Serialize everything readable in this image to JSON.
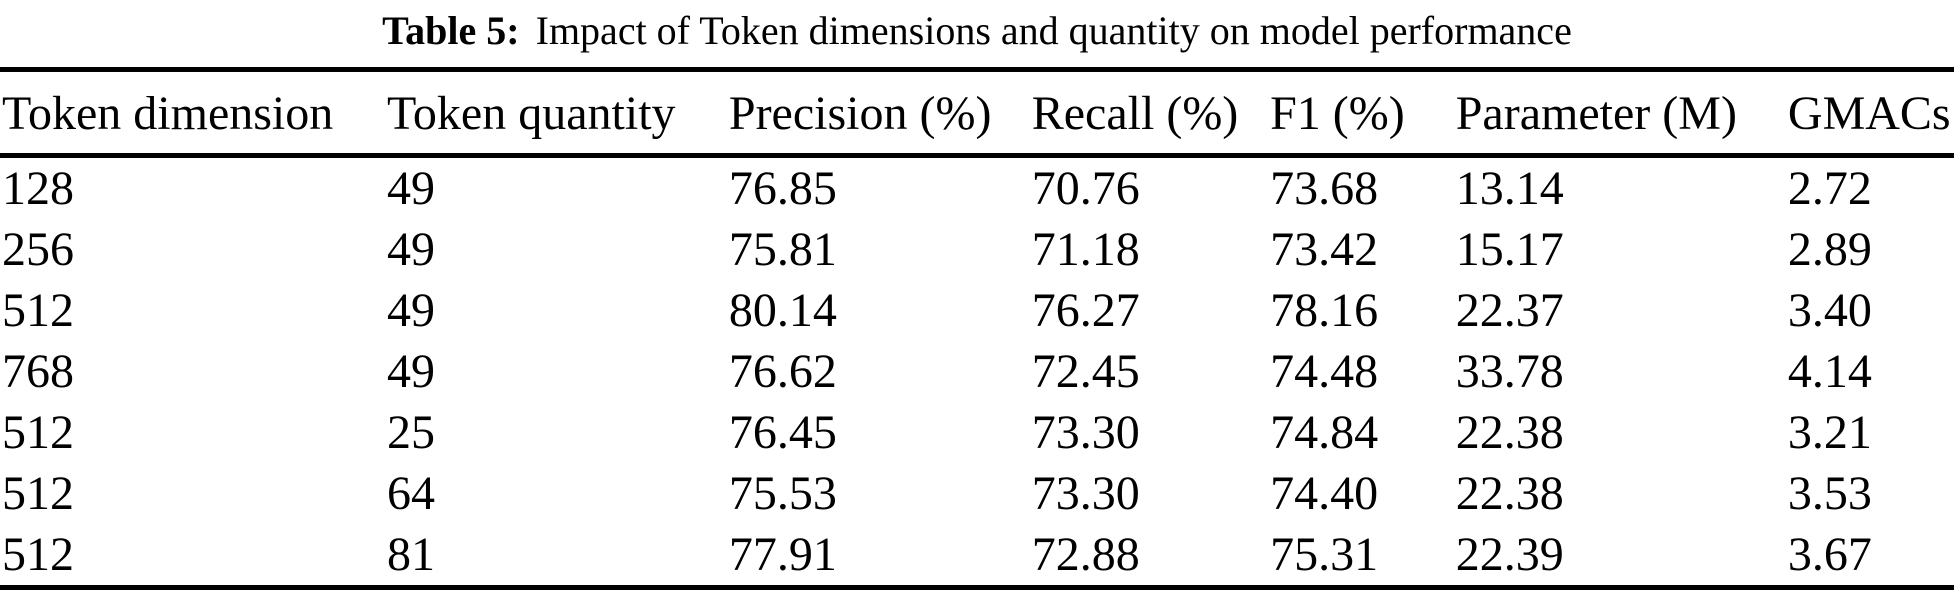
{
  "caption": {
    "label": "Table 5:",
    "text": "Impact of Token dimensions and quantity on model performance"
  },
  "table": {
    "columns": [
      "Token dimension",
      "Token quantity",
      "Precision (%)",
      "Recall (%)",
      "F1 (%)",
      "Parameter (M)",
      "GMACs"
    ],
    "rows": [
      [
        "128",
        "49",
        "76.85",
        "70.76",
        "73.68",
        "13.14",
        "2.72"
      ],
      [
        "256",
        "49",
        "75.81",
        "71.18",
        "73.42",
        "15.17",
        "2.89"
      ],
      [
        "512",
        "49",
        "80.14",
        "76.27",
        "78.16",
        "22.37",
        "3.40"
      ],
      [
        "768",
        "49",
        "76.62",
        "72.45",
        "74.48",
        "33.78",
        "4.14"
      ],
      [
        "512",
        "25",
        "76.45",
        "73.30",
        "74.84",
        "22.38",
        "3.21"
      ],
      [
        "512",
        "64",
        "75.53",
        "73.30",
        "74.40",
        "22.38",
        "3.53"
      ],
      [
        "512",
        "81",
        "77.91",
        "72.88",
        "75.31",
        "22.39",
        "3.67"
      ]
    ]
  },
  "colors": {
    "text": "#000000",
    "background": "#ffffff",
    "rule": "#000000"
  }
}
